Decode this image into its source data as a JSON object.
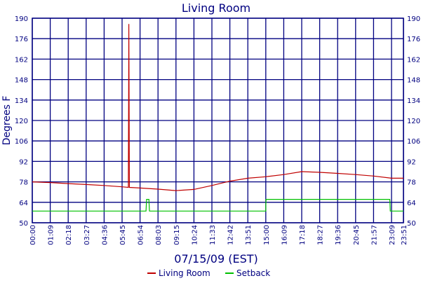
{
  "chart_data": {
    "type": "line",
    "title": "Living Room",
    "xlabel": "07/15/09 (EST)",
    "ylabel": "Degrees F",
    "ylim": [
      50,
      190
    ],
    "yticks": [
      50,
      64,
      78,
      92,
      106,
      120,
      134,
      148,
      162,
      176,
      190
    ],
    "xticks": [
      "00:00",
      "01:09",
      "02:18",
      "03:27",
      "04:36",
      "05:45",
      "06:54",
      "08:03",
      "09:15",
      "10:24",
      "11:33",
      "12:42",
      "13:51",
      "15:00",
      "16:09",
      "17:18",
      "18:27",
      "19:36",
      "20:45",
      "21:57",
      "23:09",
      "23:51"
    ],
    "grid": true,
    "legend_position": "bottom",
    "series": [
      {
        "name": "Living Room",
        "color": "#c00000",
        "points": [
          [
            "00:00",
            78
          ],
          [
            "01:09",
            77.5
          ],
          [
            "02:18",
            76.8
          ],
          [
            "03:27",
            76.2
          ],
          [
            "04:36",
            75.5
          ],
          [
            "05:45",
            74.6
          ],
          [
            "06:09",
            74.2
          ],
          [
            "06:10",
            130
          ],
          [
            "06:11",
            186
          ],
          [
            "06:12",
            130
          ],
          [
            "06:13",
            74.2
          ],
          [
            "06:54",
            73.8
          ],
          [
            "08:03",
            73
          ],
          [
            "09:15",
            72
          ],
          [
            "10:24",
            72.8
          ],
          [
            "11:33",
            75.5
          ],
          [
            "12:42",
            78.5
          ],
          [
            "13:51",
            80.5
          ],
          [
            "15:00",
            81.5
          ],
          [
            "16:09",
            83
          ],
          [
            "17:18",
            85
          ],
          [
            "18:27",
            84.5
          ],
          [
            "19:36",
            83.8
          ],
          [
            "20:45",
            83
          ],
          [
            "21:57",
            82
          ],
          [
            "23:09",
            80.5
          ],
          [
            "23:51",
            80.5
          ]
        ]
      },
      {
        "name": "Setback",
        "color": "#00c000",
        "points": [
          [
            "00:00",
            58
          ],
          [
            "07:17",
            58
          ],
          [
            "07:18",
            62
          ],
          [
            "07:19",
            66
          ],
          [
            "07:28",
            66
          ],
          [
            "07:29",
            62
          ],
          [
            "07:30",
            58
          ],
          [
            "15:00",
            58
          ],
          [
            "15:00",
            62
          ],
          [
            "15:01",
            66
          ],
          [
            "23:02",
            66
          ],
          [
            "23:03",
            62
          ],
          [
            "23:04",
            58
          ],
          [
            "23:51",
            58
          ]
        ]
      }
    ]
  }
}
